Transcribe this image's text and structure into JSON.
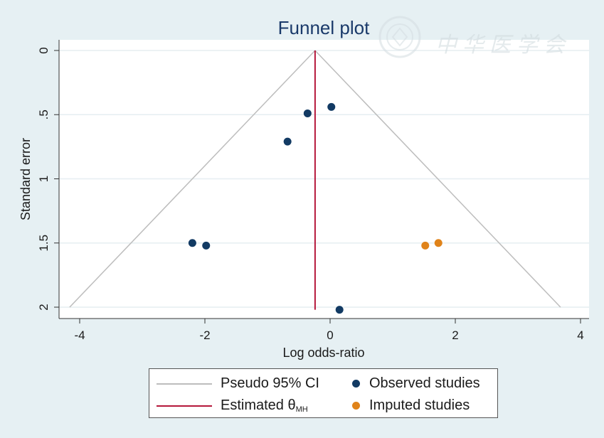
{
  "chart_data": {
    "type": "scatter",
    "title": "Funnel plot",
    "xlabel": "Log odds-ratio",
    "ylabel": "Standard error",
    "xlim": [
      -4.2,
      4.2
    ],
    "ylim": [
      2.1,
      0
    ],
    "y_reversed": true,
    "grid": true,
    "x_ticks": [
      "-4",
      "-2",
      "0",
      "2",
      "4"
    ],
    "x_tick_values": [
      -4,
      -2,
      0,
      2,
      4
    ],
    "y_ticks": [
      "0",
      ".5",
      "1",
      "1.5",
      "2"
    ],
    "y_tick_values": [
      0,
      0.5,
      1,
      1.5,
      2
    ],
    "pseudo_ci": {
      "label": "Pseudo 95% CI",
      "apex": [
        -0.24,
        0
      ],
      "left_base": [
        -4.16,
        2.0
      ],
      "right_base": [
        3.68,
        2.0
      ],
      "color": "#bdbdbd"
    },
    "estimate": {
      "label": "Estimated θ",
      "subscript": "MH",
      "x": -0.24,
      "y_range": [
        0,
        2.02
      ],
      "color": "#b5173a"
    },
    "series": [
      {
        "name": "Observed studies",
        "color": "#123a63",
        "points": [
          {
            "x": -2.2,
            "y": 1.5
          },
          {
            "x": -1.98,
            "y": 1.52
          },
          {
            "x": -0.68,
            "y": 0.71
          },
          {
            "x": -0.36,
            "y": 0.49
          },
          {
            "x": 0.02,
            "y": 0.44
          },
          {
            "x": 0.15,
            "y": 2.02
          }
        ]
      },
      {
        "name": "Imputed studies",
        "color": "#e0831a",
        "points": [
          {
            "x": 1.52,
            "y": 1.52
          },
          {
            "x": 1.73,
            "y": 1.5
          }
        ]
      }
    ],
    "legend_position": "bottom"
  },
  "watermark": {
    "text": "中华医学会"
  }
}
